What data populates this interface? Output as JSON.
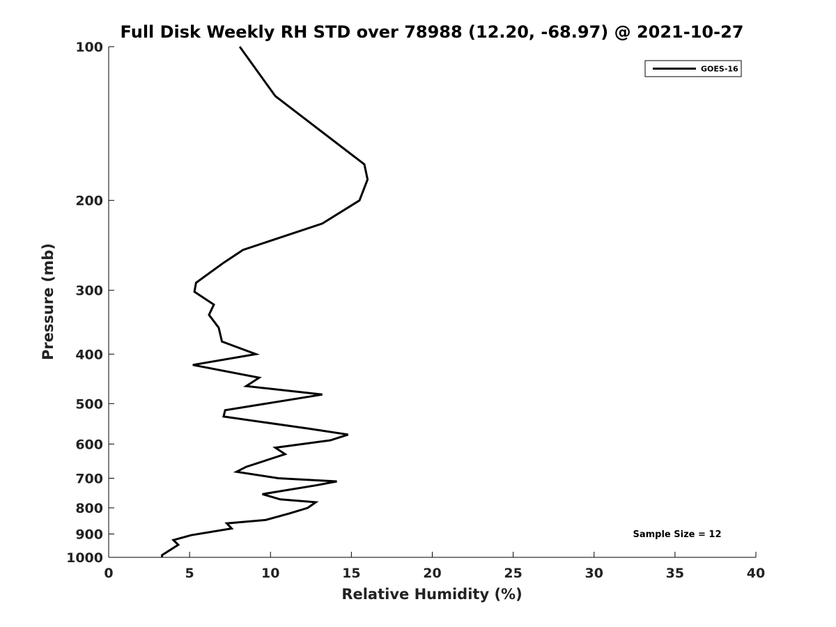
{
  "chart_data": {
    "type": "line",
    "title": "Full Disk Weekly RH STD over 78988 (12.20, -68.97) @ 2021-10-27",
    "xlabel": "Relative Humidity (%)",
    "ylabel": "Pressure (mb)",
    "xlim": [
      0,
      40
    ],
    "ylim": [
      100,
      1000
    ],
    "y_scale": "log",
    "y_reversed": true,
    "xticks": [
      0,
      5,
      10,
      15,
      20,
      25,
      30,
      35,
      40
    ],
    "yticks": [
      100,
      200,
      300,
      400,
      500,
      600,
      700,
      800,
      900,
      1000
    ],
    "grid": false,
    "legend_position": "top-right",
    "series": [
      {
        "name": "GOES-16",
        "color": "#000000",
        "points": [
          [
            8.1,
            100
          ],
          [
            10.3,
            125
          ],
          [
            15.8,
            170
          ],
          [
            16.0,
            182
          ],
          [
            15.5,
            200
          ],
          [
            13.2,
            222
          ],
          [
            8.3,
            250
          ],
          [
            7.1,
            265
          ],
          [
            5.4,
            290
          ],
          [
            5.3,
            302
          ],
          [
            6.5,
            320
          ],
          [
            6.2,
            335
          ],
          [
            6.8,
            355
          ],
          [
            7.0,
            378
          ],
          [
            9.1,
            400
          ],
          [
            5.2,
            420
          ],
          [
            9.3,
            445
          ],
          [
            8.5,
            462
          ],
          [
            13.2,
            480
          ],
          [
            7.2,
            515
          ],
          [
            7.1,
            530
          ],
          [
            12.4,
            560
          ],
          [
            14.8,
            575
          ],
          [
            13.7,
            590
          ],
          [
            10.3,
            610
          ],
          [
            10.9,
            628
          ],
          [
            8.5,
            665
          ],
          [
            7.9,
            680
          ],
          [
            10.5,
            700
          ],
          [
            14.1,
            710
          ],
          [
            12.9,
            722
          ],
          [
            9.5,
            752
          ],
          [
            10.6,
            770
          ],
          [
            12.8,
            780
          ],
          [
            12.3,
            800
          ],
          [
            11.2,
            820
          ],
          [
            9.7,
            845
          ],
          [
            7.3,
            858
          ],
          [
            7.6,
            878
          ],
          [
            5.1,
            905
          ],
          [
            4.0,
            925
          ],
          [
            4.3,
            945
          ],
          [
            3.3,
            990
          ],
          [
            3.3,
            1000
          ]
        ]
      }
    ],
    "annotations": [
      {
        "text": "Sample Size = 12"
      }
    ]
  }
}
